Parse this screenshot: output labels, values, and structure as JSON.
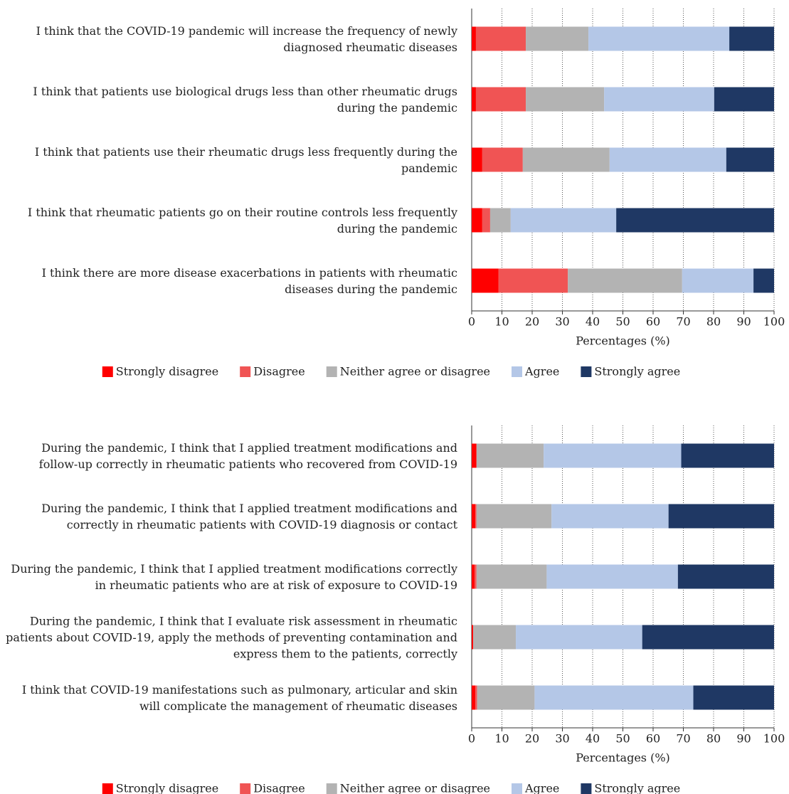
{
  "chart_data": [
    {
      "type": "stacked_barh",
      "categories": [
        "I think that the COVID-19 pandemic will increase the frequency of newly diagnosed rheumatic diseases",
        "I think that patients use biological drugs less than other rheumatic drugs during the pandemic",
        "I think that patients use their rheumatic drugs less frequently during the pandemic",
        "I think that rheumatic patients go on their routine controls less frequently during the pandemic",
        "I think there are more disease exacerbations in patients with rheumatic diseases during the pandemic"
      ],
      "series": [
        {
          "name": "Strongly disagree",
          "color": "#ff0000",
          "values": [
            1.4,
            1.4,
            3.5,
            3.5,
            8.9
          ]
        },
        {
          "name": "Disagree",
          "color": "#f05454",
          "values": [
            16.5,
            16.5,
            13.4,
            2.6,
            22.9
          ]
        },
        {
          "name": "Neither agree or disagree",
          "color": "#b3b3b3",
          "values": [
            20.7,
            25.9,
            28.7,
            6.8,
            37.8
          ]
        },
        {
          "name": "Agree",
          "color": "#b4c7e7",
          "values": [
            46.6,
            36.4,
            38.6,
            34.9,
            23.6
          ]
        },
        {
          "name": "Strongly agree",
          "color": "#1f3864",
          "values": [
            14.8,
            19.8,
            15.8,
            52.2,
            6.8
          ]
        }
      ],
      "x_label": "Percentages (%)",
      "xlim": [
        0,
        100
      ],
      "xticks": [
        0,
        10,
        20,
        30,
        40,
        50,
        60,
        70,
        80,
        90,
        100
      ],
      "grid": true,
      "legend": "bottom"
    },
    {
      "type": "stacked_barh",
      "categories": [
        "During the pandemic, I think that I applied treatment modifications and follow-up correctly in rheumatic patients who recovered from COVID-19",
        "During the pandemic, I think that I applied treatment modifications and correctly in rheumatic patients with COVID-19 diagnosis or contact",
        "During the pandemic, I think that I applied treatment modifications correctly in rheumatic patients who are at risk of exposure to COVID-19",
        "During the pandemic, I think that I evaluate risk assessment in rheumatic patients about COVID-19, apply the methods of preventing contamination and express them to the patients, correctly",
        "I think that COVID-19 manifestations such as pulmonary, articular and skin will complicate the management of rheumatic diseases"
      ],
      "series": [
        {
          "name": "Strongly disagree",
          "color": "#ff0000",
          "values": [
            1.6,
            1.2,
            1.0,
            0.5,
            1.2
          ]
        },
        {
          "name": "Disagree",
          "color": "#f05454",
          "values": [
            0,
            0.4,
            0.6,
            0,
            0.6
          ]
        },
        {
          "name": "Neither agree or disagree",
          "color": "#b3b3b3",
          "values": [
            22.2,
            24.8,
            23.2,
            14.1,
            19.0
          ]
        },
        {
          "name": "Agree",
          "color": "#b4c7e7",
          "values": [
            45.5,
            38.7,
            43.4,
            41.8,
            52.5
          ]
        },
        {
          "name": "Strongly agree",
          "color": "#1f3864",
          "values": [
            30.7,
            34.9,
            31.8,
            43.6,
            26.7
          ]
        }
      ],
      "x_label": "Percentages (%)",
      "xlim": [
        0,
        100
      ],
      "xticks": [
        0,
        10,
        20,
        30,
        40,
        50,
        60,
        70,
        80,
        90,
        100
      ],
      "grid": true,
      "legend": "bottom"
    }
  ]
}
